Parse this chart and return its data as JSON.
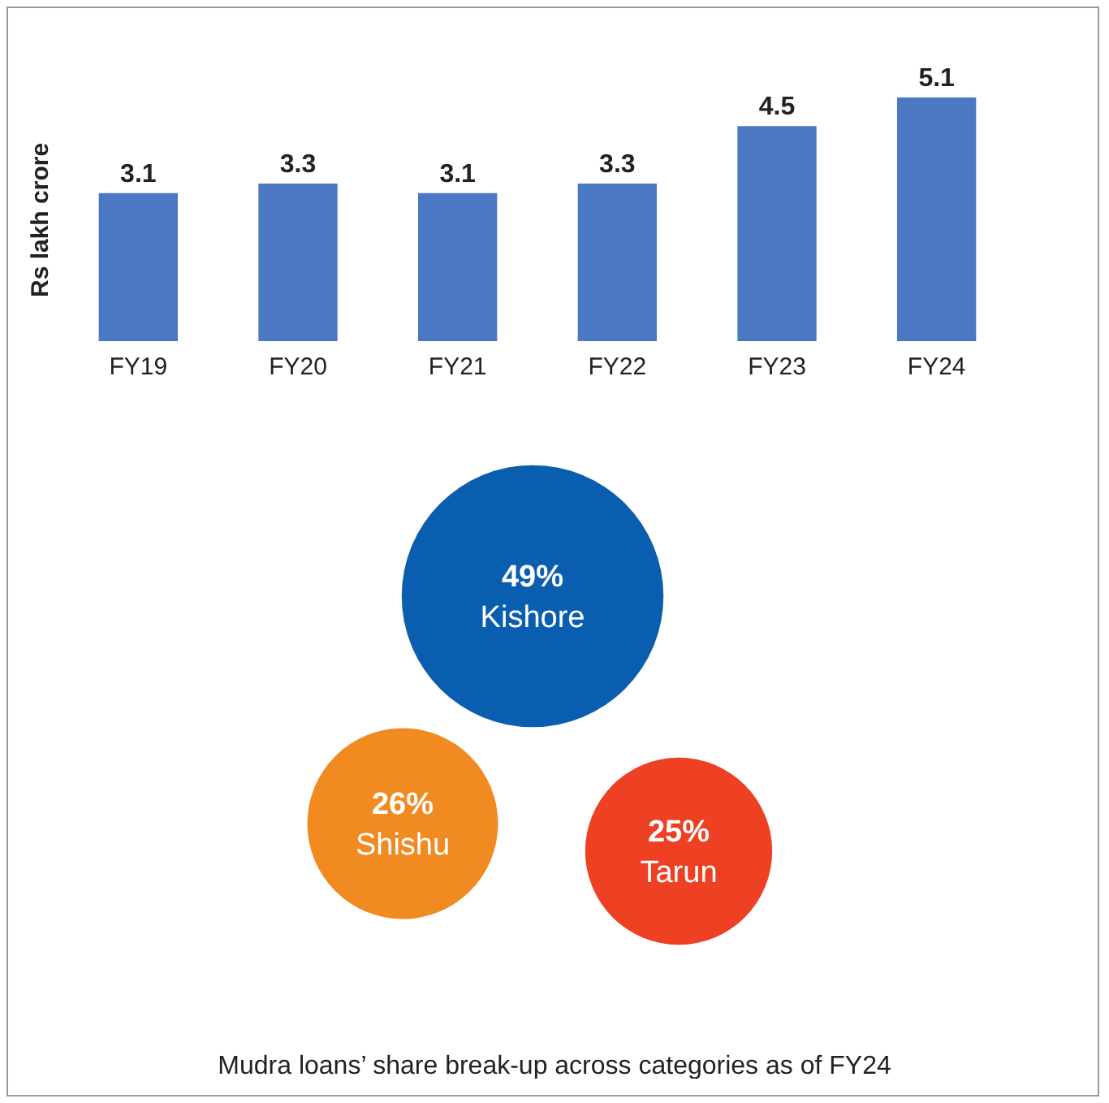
{
  "chart_data": [
    {
      "type": "bar",
      "ylabel": "Rs lakh crore",
      "categories": [
        "FY19",
        "FY20",
        "FY21",
        "FY22",
        "FY23",
        "FY24"
      ],
      "values": [
        3.1,
        3.3,
        3.1,
        3.3,
        4.5,
        5.1
      ],
      "color": "#4a78c2",
      "data_labels": true
    },
    {
      "type": "other",
      "categories": [
        "Kishore",
        "Shishu",
        "Tarun"
      ],
      "values": [
        49,
        26,
        25
      ],
      "value_labels": [
        "49%",
        "26%",
        "25%"
      ],
      "colors": [
        "#0a5eaf",
        "#f28a22",
        "#ee4023"
      ],
      "annotations": [
        "Mudra loans’ share break-up across categories as of FY24"
      ]
    }
  ]
}
